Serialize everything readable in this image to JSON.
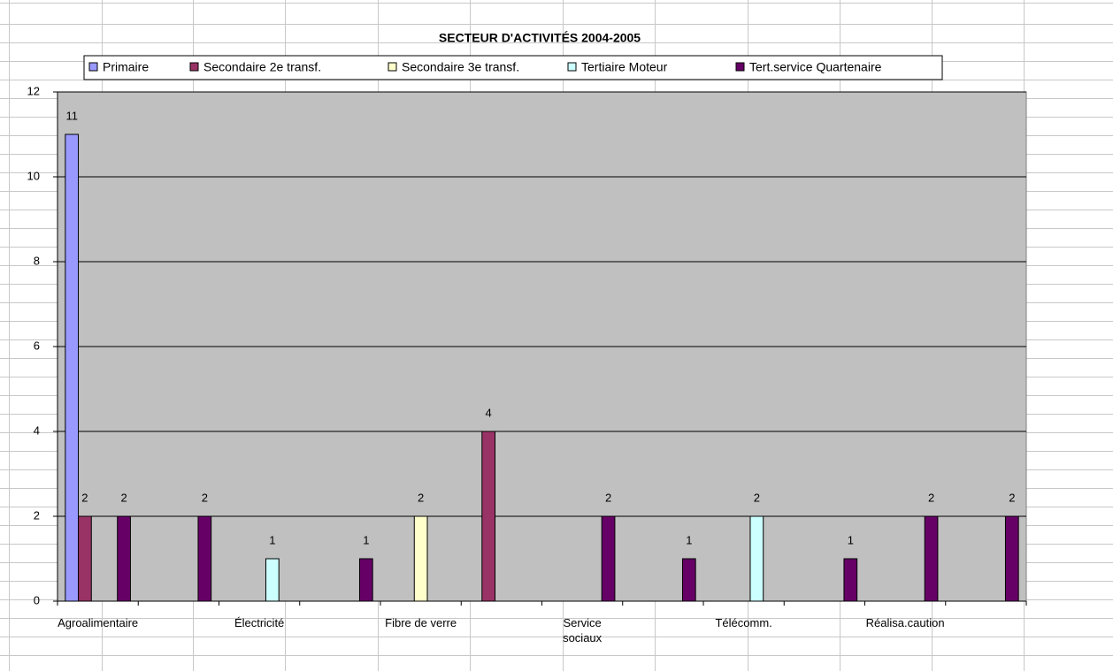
{
  "chart_data": {
    "type": "bar",
    "title": "SECTEUR D'ACTIVITÉS 2004-2005",
    "categories": [
      "Agroalimentaire",
      null,
      "Électricité",
      null,
      "Fibre de verre",
      null,
      "Service\nsociaux",
      null,
      "Télécomm.",
      null,
      "Réalisa.caution",
      null
    ],
    "series": [
      {
        "name": "Primaire",
        "color": "#9999ff",
        "values": [
          11,
          null,
          null,
          null,
          null,
          null,
          null,
          null,
          null,
          null,
          null,
          null
        ]
      },
      {
        "name": "Secondaire 2e transf.",
        "color": "#993366",
        "values": [
          2,
          null,
          null,
          null,
          null,
          4,
          null,
          null,
          null,
          null,
          null,
          null
        ]
      },
      {
        "name": "Secondaire 3e transf.",
        "color": "#ffffcc",
        "values": [
          null,
          null,
          null,
          null,
          2,
          null,
          null,
          null,
          null,
          null,
          null,
          null
        ]
      },
      {
        "name": "Tertiaire Moteur",
        "color": "#ccffff",
        "values": [
          null,
          null,
          1,
          null,
          null,
          null,
          null,
          null,
          2,
          null,
          null,
          null
        ]
      },
      {
        "name": "Tert.service Quartenaire",
        "color": "#660066",
        "values": [
          2,
          2,
          null,
          1,
          null,
          null,
          2,
          1,
          null,
          1,
          2,
          2
        ]
      }
    ],
    "ylim": [
      0,
      12
    ],
    "yticks": [
      0,
      2,
      4,
      6,
      8,
      10,
      12
    ],
    "grid": true,
    "legend": "top"
  }
}
